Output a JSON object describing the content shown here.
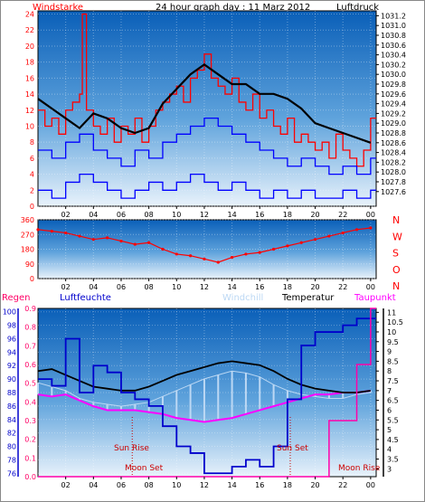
{
  "title": "24 hour graph day : 11 Marz 2012",
  "colors": {
    "wind": "#ff0000",
    "gust": "#ff0000",
    "avgwind": "#0000ff",
    "pressure": "#000000",
    "direction": "#ff0000",
    "rain": "#ff00aa",
    "humidity": "#0000cc",
    "windchill": "#bcd8f4",
    "temperature": "#000000",
    "dewpoint": "#ff00ff",
    "frame": "#ff0000",
    "plot_top": "#0a5fb8",
    "plot_bottom": "#e8f2fb"
  },
  "x_ticks": [
    "02",
    "04",
    "06",
    "08",
    "10",
    "12",
    "14",
    "16",
    "18",
    "20",
    "22",
    "00"
  ],
  "x_ticks_hours": [
    2,
    4,
    6,
    8,
    10,
    12,
    14,
    16,
    18,
    20,
    22,
    24
  ],
  "x_range": [
    0,
    24.4
  ],
  "chart_data": [
    {
      "type": "line",
      "id": "wind-pressure",
      "labels": {
        "left": "Windstarke",
        "right": "Luftdruck"
      },
      "left_axis": {
        "min": 0,
        "max": 24.4,
        "ticks": [
          0,
          2,
          4,
          6,
          8,
          10,
          12,
          14,
          16,
          18,
          20,
          22,
          24
        ]
      },
      "right_axis": {
        "min": 1027.3,
        "max": 1031.3,
        "ticks": [
          1027.6,
          1027.8,
          1028,
          1028.2,
          1028.4,
          1028.6,
          1028.8,
          1029,
          1029.2,
          1029.4,
          1029.6,
          1029.8,
          1030,
          1030.2,
          1030.4,
          1030.6,
          1030.8,
          1031,
          1031.2
        ]
      },
      "gust_x": [
        0,
        0.5,
        1,
        1.5,
        2,
        2.5,
        3,
        3.2,
        3.5,
        4,
        4.5,
        5,
        5.5,
        6,
        6.5,
        7,
        7.5,
        8,
        8.5,
        9,
        9.5,
        10,
        10.5,
        11,
        11.5,
        12,
        12.5,
        13,
        13.5,
        14,
        14.5,
        15,
        15.5,
        16,
        16.5,
        17,
        17.5,
        18,
        18.5,
        19,
        19.5,
        20,
        20.5,
        21,
        21.5,
        22,
        22.5,
        23,
        23.5,
        24
      ],
      "gust_y": [
        12,
        10,
        11,
        9,
        12,
        13,
        14,
        24,
        12,
        10,
        9,
        11,
        8,
        10,
        9,
        11,
        8,
        10,
        12,
        13,
        14,
        15,
        13,
        16,
        17,
        19,
        16,
        15,
        14,
        16,
        13,
        12,
        14,
        11,
        12,
        10,
        9,
        11,
        8,
        9,
        8,
        7,
        8,
        6,
        9,
        7,
        6,
        5,
        7,
        11
      ],
      "avg_x": [
        0,
        1,
        2,
        3,
        4,
        5,
        6,
        7,
        8,
        9,
        10,
        11,
        12,
        13,
        14,
        15,
        16,
        17,
        18,
        19,
        20,
        21,
        22,
        23,
        24
      ],
      "avg_y": [
        7,
        6,
        8,
        9,
        7,
        6,
        5,
        7,
        6,
        8,
        9,
        10,
        11,
        10,
        9,
        8,
        7,
        6,
        5,
        6,
        5,
        4,
        5,
        4,
        6
      ],
      "low_x": [
        0,
        1,
        2,
        3,
        4,
        5,
        6,
        7,
        8,
        9,
        10,
        11,
        12,
        13,
        14,
        15,
        16,
        17,
        18,
        19,
        20,
        21,
        22,
        23,
        24
      ],
      "low_y": [
        2,
        1,
        3,
        4,
        3,
        2,
        1,
        2,
        3,
        2,
        3,
        4,
        3,
        2,
        3,
        2,
        1,
        2,
        1,
        2,
        1,
        1,
        2,
        1,
        2
      ],
      "pressure_x": [
        0,
        1,
        2,
        3,
        4,
        5,
        6,
        7,
        8,
        9,
        10,
        11,
        12,
        13,
        14,
        15,
        16,
        17,
        18,
        19,
        20,
        21,
        22,
        23,
        24
      ],
      "pressure_y": [
        1029.5,
        1029.3,
        1029.1,
        1028.9,
        1029.2,
        1029.1,
        1028.9,
        1028.8,
        1028.9,
        1029.4,
        1029.7,
        1030.0,
        1030.2,
        1030.0,
        1029.8,
        1029.8,
        1029.6,
        1029.6,
        1029.5,
        1029.3,
        1029.0,
        1028.9,
        1028.8,
        1028.7,
        1028.6
      ]
    },
    {
      "type": "scatter",
      "id": "wind-direction",
      "left_axis": {
        "min": 0,
        "max": 360,
        "ticks": [
          0,
          45,
          90,
          135,
          180,
          225,
          270,
          315,
          360
        ]
      },
      "right_labels": [
        "N",
        "W",
        "S",
        "O",
        "N"
      ],
      "dir_x": [
        0,
        1,
        2,
        3,
        4,
        5,
        6,
        7,
        8,
        9,
        10,
        11,
        12,
        13,
        14,
        15,
        16,
        17,
        18,
        19,
        20,
        21,
        22,
        23,
        24
      ],
      "dir_y": [
        300,
        290,
        280,
        260,
        240,
        250,
        230,
        210,
        220,
        180,
        150,
        140,
        120,
        100,
        130,
        150,
        160,
        180,
        200,
        220,
        240,
        260,
        280,
        300,
        310
      ]
    },
    {
      "type": "line",
      "id": "temp-humidity",
      "labels": {
        "regen": "Regen",
        "humidity": "Luftfeuchte",
        "windchill": "Windchill",
        "temperature": "Temperatur",
        "dewpoint": "Taupunkt"
      },
      "rain_axis": {
        "min": 0,
        "max": 0.9,
        "ticks": [
          0,
          0.1,
          0.2,
          0.3,
          0.4,
          0.5,
          0.6,
          0.7,
          0.8,
          0.9
        ]
      },
      "humidity_axis": {
        "min": 75.5,
        "max": 100.5,
        "ticks": [
          76,
          78,
          80,
          82,
          84,
          86,
          88,
          90,
          92,
          94,
          96,
          98,
          100
        ]
      },
      "temp_axis": {
        "min": 2.6,
        "max": 11.2,
        "ticks": [
          3,
          3.5,
          4,
          4.5,
          5,
          5.5,
          6,
          6.5,
          7,
          7.5,
          8,
          8.5,
          9,
          9.5,
          10,
          10.5,
          11
        ]
      },
      "annotations": {
        "sunrise": "Sun Rise",
        "sunset": "Sun Set",
        "moonset": "Moon Set",
        "moonrise": "Moon Rise"
      },
      "temp_x": [
        0,
        1,
        2,
        3,
        4,
        5,
        6,
        7,
        8,
        9,
        10,
        11,
        12,
        13,
        14,
        15,
        16,
        17,
        18,
        19,
        20,
        21,
        22,
        23,
        24
      ],
      "temp_y": [
        8.0,
        8.1,
        7.8,
        7.5,
        7.2,
        7.1,
        7.0,
        7.0,
        7.2,
        7.5,
        7.8,
        8.0,
        8.2,
        8.4,
        8.5,
        8.4,
        8.3,
        8.0,
        7.6,
        7.3,
        7.1,
        7.0,
        6.9,
        6.9,
        7.0
      ],
      "dew_x": [
        0,
        1,
        2,
        3,
        4,
        5,
        6,
        7,
        8,
        9,
        10,
        11,
        12,
        13,
        14,
        15,
        16,
        17,
        18,
        19,
        20,
        21,
        22,
        23,
        24
      ],
      "dew_y": [
        6.8,
        6.7,
        6.8,
        6.5,
        6.2,
        6.0,
        6.0,
        6.0,
        5.9,
        5.8,
        5.6,
        5.5,
        5.4,
        5.5,
        5.6,
        5.8,
        6.0,
        6.2,
        6.4,
        6.6,
        6.8,
        6.8,
        6.9,
        6.9,
        7.0
      ],
      "chill_x": [
        0,
        1,
        2,
        3,
        4,
        5,
        6,
        7,
        8,
        9,
        10,
        11,
        12,
        13,
        14,
        15,
        16,
        17,
        18,
        19,
        20,
        21,
        22,
        23,
        24
      ],
      "chill_y": [
        7.4,
        7.2,
        7.0,
        6.6,
        6.4,
        6.3,
        6.2,
        6.3,
        6.4,
        6.7,
        7.0,
        7.3,
        7.6,
        7.8,
        8.0,
        7.9,
        7.7,
        7.3,
        7.0,
        6.8,
        6.7,
        6.6,
        6.6,
        6.8,
        6.9
      ],
      "hum_x": [
        0,
        1,
        2,
        3,
        4,
        5,
        6,
        7,
        8,
        9,
        10,
        11,
        12,
        13,
        14,
        15,
        16,
        17,
        18,
        19,
        20,
        21,
        22,
        23,
        24
      ],
      "hum_y": [
        90,
        89,
        96,
        88,
        92,
        91,
        88,
        87,
        86,
        83,
        80,
        79,
        76,
        76,
        77,
        78,
        77,
        80,
        87,
        95,
        97,
        97,
        98,
        99,
        99
      ],
      "rain_x": [
        0,
        1,
        2,
        3,
        4,
        5,
        6,
        7,
        8,
        9,
        10,
        11,
        12,
        13,
        14,
        15,
        16,
        17,
        18,
        19,
        20,
        21,
        22,
        23,
        24
      ],
      "rain_y": [
        0,
        0,
        0,
        0,
        0,
        0,
        0,
        0,
        0,
        0,
        0,
        0,
        0,
        0,
        0,
        0,
        0,
        0,
        0,
        0,
        0,
        0.3,
        0.3,
        0.6,
        0.9
      ]
    }
  ]
}
